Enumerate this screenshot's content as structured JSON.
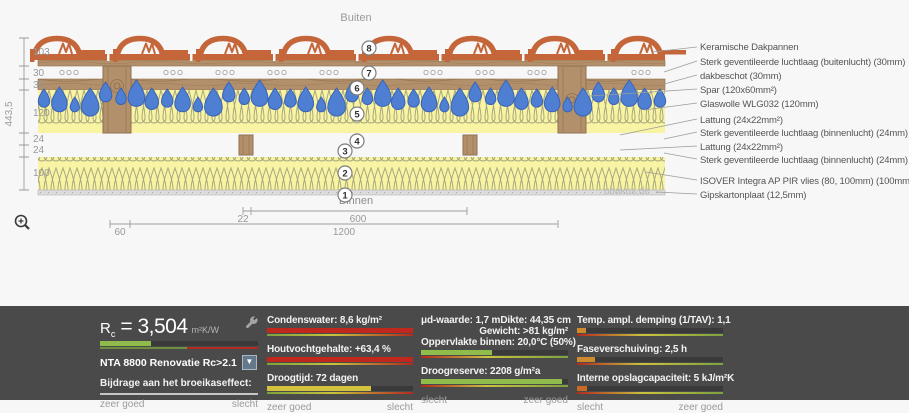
{
  "colors": {
    "tile_orange": "#c4663a",
    "wood_brown": "#b1906b",
    "insulation_yellow": "#f8f4a3",
    "drop_blue": "#4e7fd3",
    "gips_gray": "#dcdcdc",
    "panel_bg": "#4a4a4a",
    "good_green": "#8fbc4a",
    "bad_red": "#c0281e",
    "warn_yellow": "#d3c23c",
    "warn_orange": "#cf8a2e"
  },
  "diagram": {
    "outside_label": "Buiten",
    "inside_label": "Binnen",
    "watermark": "ubakus.de",
    "markers": [
      "1",
      "2",
      "3",
      "4",
      "5",
      "6",
      "7",
      "8"
    ],
    "dims": {
      "total": "443,5",
      "left": [
        "103",
        "30",
        "30",
        "120",
        "24",
        "24",
        "100"
      ],
      "bottom": [
        "22",
        "600",
        "60",
        "1200"
      ]
    },
    "layer_labels": [
      "Keramische Dakpannen",
      "Sterk geventileerde luchtlaag (buitenlucht) (30mm)",
      "dakbeschot (30mm)",
      "Spar (120x60mm²)",
      "Glaswolle WLG032 (120mm)",
      "Lattung (24x22mm²)",
      "Sterk geventileerde luchtlaag (binnenlucht) (24mm)",
      "Lattung (24x22mm²)",
      "Sterk geventileerde luchtlaag (binnenlucht) (24mm)",
      "ISOVER Integra AP PIR vlies (80, 100mm) (100mm)",
      "Gipskartonplaat (12,5mm)"
    ]
  },
  "panel": {
    "rc": {
      "sym": "R",
      "sub": "c",
      "val": "= 3,504",
      "unit": "m²K/W",
      "bar": {
        "pct": 32,
        "color": "#8fbc4a"
      },
      "select_label": "NTA 8800 Renovatie Rc>2.1",
      "effect_label": "Bijdrage aan het broeikaseffect:"
    },
    "icons": {
      "dropdown": "▼"
    },
    "scales": {
      "good": "zeer goed",
      "bad": "slecht"
    },
    "col2": [
      {
        "label": "Condenswater: 8,6 kg/m²",
        "pct": 100,
        "color": "#c0281e"
      },
      {
        "label": "Houtvochtgehalte: +63,4 %",
        "pct": 100,
        "color": "#c0281e"
      },
      {
        "label": "Droogtijd: 72 dagen",
        "pct": 71,
        "color": "#d3c23c"
      }
    ],
    "col3_info": {
      "ud": "μd-waarde: 1,7 m",
      "dikte": "Dikte: 44,35 cm",
      "gewicht": "Gewicht: >81 kg/m²"
    },
    "col3": [
      {
        "label": "Oppervlakte binnen: 20,0°C (50%)",
        "pct": 48,
        "color": "#8fbc4a"
      },
      {
        "label": "Droogreserve: 2208 g/m²a",
        "pct": 96,
        "color": "#8fbc4a"
      }
    ],
    "col4": [
      {
        "label": "Temp. ampl. demping (1/TAV): 1,1",
        "pct": 6,
        "color": "#cf8a2e"
      },
      {
        "label": "Faseverschuiving: 2,5 h",
        "pct": 12,
        "color": "#cf8a2e"
      },
      {
        "label": "Interne opslagcapaciteit: 5 kJ/m²K",
        "pct": 7,
        "color": "#c86a26"
      }
    ]
  }
}
